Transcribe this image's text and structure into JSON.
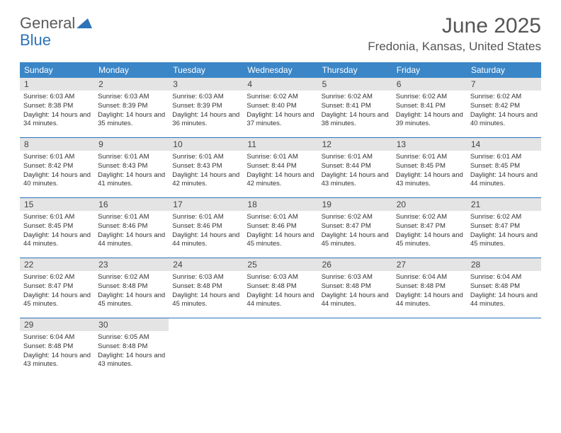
{
  "logo": {
    "text1": "General",
    "text2": "Blue"
  },
  "title": "June 2025",
  "location": "Fredonia, Kansas, United States",
  "colors": {
    "header_bg": "#3b86c7",
    "header_text": "#ffffff",
    "daynum_bg": "#e4e4e4",
    "border": "#2d73b8",
    "title_color": "#555555",
    "body_text": "#333333"
  },
  "days_of_week": [
    "Sunday",
    "Monday",
    "Tuesday",
    "Wednesday",
    "Thursday",
    "Friday",
    "Saturday"
  ],
  "weeks": [
    [
      {
        "n": "1",
        "sr": "6:03 AM",
        "ss": "8:38 PM",
        "dl": "14 hours and 34 minutes."
      },
      {
        "n": "2",
        "sr": "6:03 AM",
        "ss": "8:39 PM",
        "dl": "14 hours and 35 minutes."
      },
      {
        "n": "3",
        "sr": "6:03 AM",
        "ss": "8:39 PM",
        "dl": "14 hours and 36 minutes."
      },
      {
        "n": "4",
        "sr": "6:02 AM",
        "ss": "8:40 PM",
        "dl": "14 hours and 37 minutes."
      },
      {
        "n": "5",
        "sr": "6:02 AM",
        "ss": "8:41 PM",
        "dl": "14 hours and 38 minutes."
      },
      {
        "n": "6",
        "sr": "6:02 AM",
        "ss": "8:41 PM",
        "dl": "14 hours and 39 minutes."
      },
      {
        "n": "7",
        "sr": "6:02 AM",
        "ss": "8:42 PM",
        "dl": "14 hours and 40 minutes."
      }
    ],
    [
      {
        "n": "8",
        "sr": "6:01 AM",
        "ss": "8:42 PM",
        "dl": "14 hours and 40 minutes."
      },
      {
        "n": "9",
        "sr": "6:01 AM",
        "ss": "8:43 PM",
        "dl": "14 hours and 41 minutes."
      },
      {
        "n": "10",
        "sr": "6:01 AM",
        "ss": "8:43 PM",
        "dl": "14 hours and 42 minutes."
      },
      {
        "n": "11",
        "sr": "6:01 AM",
        "ss": "8:44 PM",
        "dl": "14 hours and 42 minutes."
      },
      {
        "n": "12",
        "sr": "6:01 AM",
        "ss": "8:44 PM",
        "dl": "14 hours and 43 minutes."
      },
      {
        "n": "13",
        "sr": "6:01 AM",
        "ss": "8:45 PM",
        "dl": "14 hours and 43 minutes."
      },
      {
        "n": "14",
        "sr": "6:01 AM",
        "ss": "8:45 PM",
        "dl": "14 hours and 44 minutes."
      }
    ],
    [
      {
        "n": "15",
        "sr": "6:01 AM",
        "ss": "8:45 PM",
        "dl": "14 hours and 44 minutes."
      },
      {
        "n": "16",
        "sr": "6:01 AM",
        "ss": "8:46 PM",
        "dl": "14 hours and 44 minutes."
      },
      {
        "n": "17",
        "sr": "6:01 AM",
        "ss": "8:46 PM",
        "dl": "14 hours and 44 minutes."
      },
      {
        "n": "18",
        "sr": "6:01 AM",
        "ss": "8:46 PM",
        "dl": "14 hours and 45 minutes."
      },
      {
        "n": "19",
        "sr": "6:02 AM",
        "ss": "8:47 PM",
        "dl": "14 hours and 45 minutes."
      },
      {
        "n": "20",
        "sr": "6:02 AM",
        "ss": "8:47 PM",
        "dl": "14 hours and 45 minutes."
      },
      {
        "n": "21",
        "sr": "6:02 AM",
        "ss": "8:47 PM",
        "dl": "14 hours and 45 minutes."
      }
    ],
    [
      {
        "n": "22",
        "sr": "6:02 AM",
        "ss": "8:47 PM",
        "dl": "14 hours and 45 minutes."
      },
      {
        "n": "23",
        "sr": "6:02 AM",
        "ss": "8:48 PM",
        "dl": "14 hours and 45 minutes."
      },
      {
        "n": "24",
        "sr": "6:03 AM",
        "ss": "8:48 PM",
        "dl": "14 hours and 45 minutes."
      },
      {
        "n": "25",
        "sr": "6:03 AM",
        "ss": "8:48 PM",
        "dl": "14 hours and 44 minutes."
      },
      {
        "n": "26",
        "sr": "6:03 AM",
        "ss": "8:48 PM",
        "dl": "14 hours and 44 minutes."
      },
      {
        "n": "27",
        "sr": "6:04 AM",
        "ss": "8:48 PM",
        "dl": "14 hours and 44 minutes."
      },
      {
        "n": "28",
        "sr": "6:04 AM",
        "ss": "8:48 PM",
        "dl": "14 hours and 44 minutes."
      }
    ],
    [
      {
        "n": "29",
        "sr": "6:04 AM",
        "ss": "8:48 PM",
        "dl": "14 hours and 43 minutes."
      },
      {
        "n": "30",
        "sr": "6:05 AM",
        "ss": "8:48 PM",
        "dl": "14 hours and 43 minutes."
      },
      null,
      null,
      null,
      null,
      null
    ]
  ],
  "labels": {
    "sunrise": "Sunrise:",
    "sunset": "Sunset:",
    "daylight": "Daylight:"
  }
}
